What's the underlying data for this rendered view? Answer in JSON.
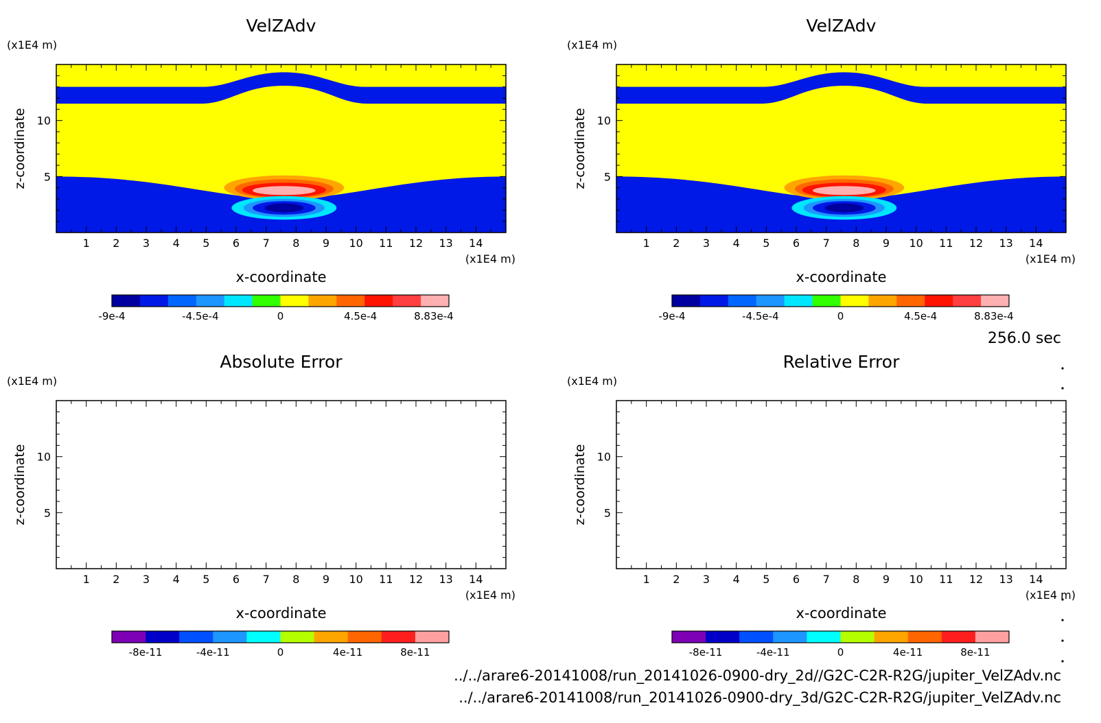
{
  "time_label": "256.0 sec",
  "file_paths": [
    "../../arare6-20141008/run_20141026-0900-dry_2d//G2C-C2R-R2G/jupiter_VelZAdv.nc",
    "../../arare6-20141008/run_20141026-0900-dry_3d/G2C-C2R-R2G/jupiter_VelZAdv.nc"
  ],
  "colors": {
    "field_scale": [
      "#0000a0",
      "#0019e6",
      "#0066ff",
      "#1e96ff",
      "#00e6ff",
      "#32ff00",
      "#ffff00",
      "#ffa500",
      "#ff6600",
      "#ff1400",
      "#ff4040",
      "#ffb0b0"
    ],
    "error_scale": [
      "#7d00b4",
      "#0000c8",
      "#0050ff",
      "#1e96ff",
      "#00ffff",
      "#b4ff00",
      "#ffa500",
      "#ff6600",
      "#ff1e1e",
      "#ffa0a0"
    ]
  },
  "chart_data": [
    {
      "type": "heatmap",
      "title": "VelZAdv",
      "xlabel": "x-coordinate",
      "ylabel": "z-coordinate",
      "x_unit": "(x1E4 m)",
      "y_unit": "(x1E4 m)",
      "xlim": [
        0,
        15
      ],
      "ylim": [
        0,
        15
      ],
      "x_ticks": [
        1,
        2,
        3,
        4,
        5,
        6,
        7,
        8,
        9,
        10,
        11,
        12,
        13,
        14
      ],
      "y_ticks": [
        5,
        10
      ],
      "colorbar_labels": [
        "-9e-4",
        "-4.5e-4",
        "0",
        "4.5e-4",
        "8.83e-4"
      ],
      "colorbar_range": [
        -0.0009,
        0.000883
      ],
      "features": {
        "upper_green_band": {
          "x": [
            0,
            15
          ],
          "z": [
            11.5,
            13
          ]
        },
        "positive_cell_center": [
          7.6,
          3.9
        ],
        "negative_cell_center": [
          7.6,
          2.2
        ]
      }
    },
    {
      "type": "heatmap",
      "title": "VelZAdv",
      "xlabel": "x-coordinate",
      "ylabel": "z-coordinate",
      "x_unit": "(x1E4 m)",
      "y_unit": "(x1E4 m)",
      "xlim": [
        0,
        15
      ],
      "ylim": [
        0,
        15
      ],
      "x_ticks": [
        1,
        2,
        3,
        4,
        5,
        6,
        7,
        8,
        9,
        10,
        11,
        12,
        13,
        14
      ],
      "y_ticks": [
        5,
        10
      ],
      "colorbar_labels": [
        "-9e-4",
        "-4.5e-4",
        "0",
        "4.5e-4",
        "8.83e-4"
      ],
      "colorbar_range": [
        -0.0009,
        0.000883
      ],
      "features": {
        "upper_green_band": {
          "x": [
            0,
            15
          ],
          "z": [
            11.5,
            13
          ]
        },
        "positive_cell_center": [
          7.6,
          3.9
        ],
        "negative_cell_center": [
          7.6,
          2.2
        ]
      }
    },
    {
      "type": "heatmap",
      "title": "Absolute Error",
      "xlabel": "x-coordinate",
      "ylabel": "z-coordinate",
      "x_unit": "(x1E4 m)",
      "y_unit": "(x1E4 m)",
      "xlim": [
        0,
        15
      ],
      "ylim": [
        0,
        15
      ],
      "x_ticks": [
        1,
        2,
        3,
        4,
        5,
        6,
        7,
        8,
        9,
        10,
        11,
        12,
        13,
        14
      ],
      "y_ticks": [
        5,
        10
      ],
      "colorbar_labels": [
        "-8e-11",
        "-4e-11",
        "0",
        "4e-11",
        "8e-11"
      ],
      "values": []
    },
    {
      "type": "heatmap",
      "title": "Relative Error",
      "xlabel": "x-coordinate",
      "ylabel": "z-coordinate",
      "x_unit": "(x1E4 m)",
      "y_unit": "(x1E4 m)",
      "xlim": [
        0,
        15
      ],
      "ylim": [
        0,
        15
      ],
      "x_ticks": [
        1,
        2,
        3,
        4,
        5,
        6,
        7,
        8,
        9,
        10,
        11,
        12,
        13,
        14
      ],
      "y_ticks": [
        5,
        10
      ],
      "colorbar_labels": [
        "-8e-11",
        "-4e-11",
        "0",
        "4e-11",
        "8e-11"
      ],
      "values": []
    }
  ]
}
